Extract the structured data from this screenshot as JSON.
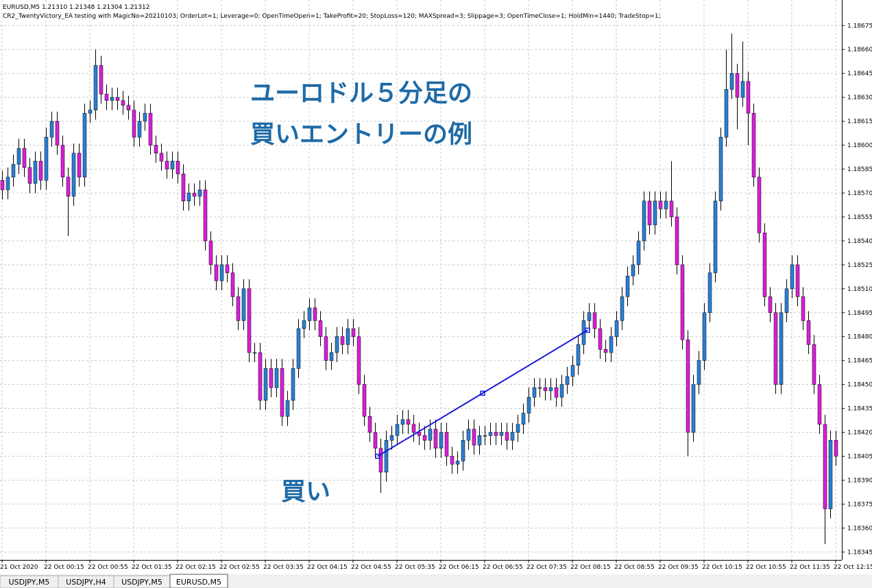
{
  "header": {
    "symbol_line": "EURUSD,M5  1.21310 1.21348 1.21304 1.21312",
    "ea_line": "CR2_TwentyVictory_EA testing with MagicNo=20210103; OrderLot=1; Leverage=0; OpenTimeOpen=1; TakeProfit=20; StopLoss=120; MAXSpread=3; Slippage=3; OpenTimeClose=1; HoldMin=1440; TradeStop=1;"
  },
  "annotations": {
    "title_line1": "ユーロドル５分足の",
    "title_line2": "買いエントリーの例",
    "buy_label": "買い"
  },
  "tabs": [
    "USDJPY,M5",
    "USDJPY,H4",
    "USDJPY,M5",
    "EURUSD,M5"
  ],
  "chart_data": {
    "type": "candlestick",
    "up_color": "#2a7fd4",
    "down_color": "#d81fd8",
    "grid": true,
    "ylim": [
      1.1834,
      1.18691
    ],
    "yticks": [
      1.18675,
      {
        "value": 1.1866,
        "label": "1.18660"
      },
      1.18645,
      {
        "value": 1.1863,
        "label": "1.18630"
      },
      1.18615,
      {
        "value": 1.186,
        "label": "1.18600"
      },
      1.18585,
      {
        "value": 1.1857,
        "label": "1.18570"
      },
      1.18555,
      {
        "value": 1.1854,
        "label": "1.18540"
      },
      1.18525,
      {
        "value": 1.1851,
        "label": "1.18510"
      },
      1.18495,
      {
        "value": 1.1848,
        "label": "1.18480"
      },
      1.18465,
      {
        "value": 1.1845,
        "label": "1.18450"
      },
      1.18435,
      {
        "value": 1.1842,
        "label": "1.18420"
      },
      1.18405,
      {
        "value": 1.1839,
        "label": "1.18390"
      },
      1.18375,
      {
        "value": 1.1836,
        "label": "1.18360"
      },
      1.18345
    ],
    "categories": [
      "21 Oct 2020",
      null,
      null,
      null,
      null,
      null,
      null,
      null,
      "22 Oct 00:15",
      null,
      null,
      null,
      null,
      null,
      null,
      null,
      "22 Oct 00:55",
      null,
      null,
      null,
      null,
      null,
      null,
      null,
      "22 Oct 01:35",
      null,
      null,
      null,
      null,
      null,
      null,
      null,
      "22 Oct 02:15",
      null,
      null,
      null,
      null,
      null,
      null,
      null,
      "22 Oct 02:55",
      null,
      null,
      null,
      null,
      null,
      null,
      null,
      "22 Oct 03:35",
      null,
      null,
      null,
      null,
      null,
      null,
      null,
      "22 Oct 04:15",
      null,
      null,
      null,
      null,
      null,
      null,
      null,
      "22 Oct 04:55",
      null,
      null,
      null,
      null,
      null,
      null,
      null,
      "22 Oct 05:35",
      null,
      null,
      null,
      null,
      null,
      null,
      null,
      "22 Oct 06:15",
      null,
      null,
      null,
      null,
      null,
      null,
      null,
      "22 Oct 06:55",
      null,
      null,
      null,
      null,
      null,
      null,
      null,
      "22 Oct 07:35",
      null,
      null,
      null,
      null,
      null,
      null,
      null,
      "22 Oct 08:15",
      null,
      null,
      null,
      null,
      null,
      null,
      null,
      "22 Oct 08:55",
      null,
      null,
      null,
      null,
      null,
      null,
      null,
      "22 Oct 09:35",
      null,
      null,
      null,
      null,
      null,
      null,
      null,
      "22 Oct 10:15",
      null,
      null,
      null,
      null,
      null,
      null,
      null,
      "22 Oct 10:55",
      null,
      null,
      null,
      null,
      null,
      null,
      null,
      "22 Oct 11:35",
      null,
      null,
      null,
      null,
      null,
      null,
      null,
      "22 Oct 12:15"
    ],
    "open": [
      1.18578,
      1.18572,
      1.1858,
      1.18588,
      1.18598,
      1.18586,
      1.18576,
      1.1859,
      1.18578,
      1.18605,
      1.18615,
      1.186,
      1.1858,
      1.18568,
      1.18595,
      1.1858,
      1.1862,
      1.18622,
      1.1865,
      1.18632,
      1.18628,
      1.1863,
      1.18628,
      1.18625,
      1.18622,
      1.18605,
      1.18615,
      1.1862,
      1.186,
      1.18595,
      1.1859,
      1.18585,
      1.1859,
      1.18582,
      1.18565,
      1.1857,
      1.18568,
      1.18572,
      1.1854,
      1.18525,
      1.18515,
      1.18525,
      1.1852,
      1.18505,
      1.1849,
      1.1851,
      1.1847,
      1.1847,
      1.1844,
      1.1846,
      1.18448,
      1.1846,
      1.1843,
      1.1844,
      1.1846,
      1.18485,
      1.1849,
      1.18498,
      1.1849,
      1.1848,
      1.18465,
      1.1847,
      1.1848,
      1.18475,
      1.18485,
      1.1848,
      1.1845,
      1.1843,
      1.1842,
      1.1841,
      1.18395,
      1.18415,
      1.18418,
      1.18425,
      1.18428,
      1.18425,
      1.1842,
      1.18418,
      1.18415,
      1.18422,
      1.1841,
      1.1842,
      1.18405,
      1.184,
      1.18402,
      1.18415,
      1.18422,
      1.18412,
      1.18418,
      1.18418,
      1.1842,
      1.18418,
      1.1842,
      1.18415,
      1.1842,
      1.18425,
      1.18432,
      1.18442,
      1.18448,
      1.18448,
      1.18446,
      1.18448,
      1.18442,
      1.1845,
      1.18455,
      1.18462,
      1.18475,
      1.1849,
      1.18495,
      1.18485,
      1.18472,
      1.1847,
      1.1848,
      1.1849,
      1.18505,
      1.18518,
      1.18525,
      1.1854,
      1.18565,
      1.1855,
      1.18565,
      1.1856,
      1.18565,
      1.18555,
      1.18525,
      1.18478,
      1.1842,
      1.1845,
      1.18465,
      1.18495,
      1.1852,
      1.18565,
      1.18605,
      1.18635,
      1.18645,
      1.1863,
      1.1864,
      1.1862,
      1.1858,
      1.18545,
      1.18505,
      1.18495,
      1.1845,
      1.18495,
      1.1851,
      1.18525,
      1.18505,
      1.1849,
      1.18475,
      1.1845,
      1.18425,
      1.18372,
      1.18415
    ],
    "high": [
      1.18584,
      1.18586,
      1.18594,
      1.18604,
      1.18604,
      1.18592,
      1.18596,
      1.18596,
      1.18611,
      1.18621,
      1.18621,
      1.18606,
      1.18586,
      1.18601,
      1.18601,
      1.18626,
      1.18628,
      1.1866,
      1.18656,
      1.18638,
      1.18636,
      1.18636,
      1.18634,
      1.18631,
      1.18628,
      1.18621,
      1.18626,
      1.18626,
      1.18606,
      1.18601,
      1.18596,
      1.18596,
      1.18596,
      1.18588,
      1.18576,
      1.18576,
      1.18578,
      1.18578,
      1.18546,
      1.18531,
      1.18531,
      1.18531,
      1.18526,
      1.18511,
      1.18516,
      1.18516,
      1.18476,
      1.18476,
      1.18466,
      1.18466,
      1.18466,
      1.18466,
      1.18446,
      1.18466,
      1.18491,
      1.18496,
      1.18504,
      1.18504,
      1.18496,
      1.18486,
      1.18476,
      1.18486,
      1.18486,
      1.18491,
      1.18491,
      1.18486,
      1.18456,
      1.18436,
      1.18426,
      1.18416,
      1.18421,
      1.18424,
      1.18431,
      1.18434,
      1.18434,
      1.18431,
      1.18426,
      1.18424,
      1.18428,
      1.18428,
      1.18426,
      1.18426,
      1.18411,
      1.18408,
      1.18421,
      1.18428,
      1.18428,
      1.18424,
      1.18424,
      1.18426,
      1.18426,
      1.18426,
      1.18426,
      1.18426,
      1.18431,
      1.18438,
      1.18448,
      1.18454,
      1.18454,
      1.18454,
      1.18454,
      1.18454,
      1.18456,
      1.18461,
      1.18468,
      1.18481,
      1.18496,
      1.18501,
      1.18501,
      1.18491,
      1.18478,
      1.18486,
      1.18496,
      1.18511,
      1.18524,
      1.18531,
      1.18546,
      1.18571,
      1.18571,
      1.18571,
      1.18571,
      1.18571,
      1.1859,
      1.18561,
      1.18531,
      1.18484,
      1.18456,
      1.18471,
      1.18501,
      1.18526,
      1.18571,
      1.18611,
      1.1866,
      1.1867,
      1.18651,
      1.18665,
      1.18646,
      1.18626,
      1.18586,
      1.18551,
      1.18511,
      1.18501,
      1.18501,
      1.18516,
      1.18531,
      1.18531,
      1.18511,
      1.18496,
      1.18481,
      1.18456,
      1.18431,
      1.18421,
      1.18421
    ],
    "low": [
      1.18566,
      1.18566,
      1.18574,
      1.18582,
      1.1858,
      1.1857,
      1.1857,
      1.18572,
      1.18572,
      1.18599,
      1.18594,
      1.18574,
      1.18543,
      1.18562,
      1.18574,
      1.18574,
      1.18614,
      1.18616,
      1.18626,
      1.18622,
      1.18622,
      1.18622,
      1.18619,
      1.18616,
      1.18599,
      1.18599,
      1.18609,
      1.18594,
      1.18589,
      1.18584,
      1.18579,
      1.18579,
      1.18576,
      1.18559,
      1.18559,
      1.18562,
      1.18562,
      1.18534,
      1.18519,
      1.18509,
      1.18509,
      1.18514,
      1.18499,
      1.18484,
      1.18484,
      1.18464,
      1.18464,
      1.18434,
      1.18434,
      1.18442,
      1.18442,
      1.18424,
      1.18424,
      1.18434,
      1.18454,
      1.18479,
      1.18484,
      1.18484,
      1.18474,
      1.18459,
      1.18459,
      1.18464,
      1.18469,
      1.18469,
      1.18474,
      1.18444,
      1.18424,
      1.18414,
      1.18404,
      1.18382,
      1.18389,
      1.18409,
      1.18412,
      1.18419,
      1.18419,
      1.18414,
      1.18412,
      1.18409,
      1.18409,
      1.18404,
      1.18404,
      1.18399,
      1.18394,
      1.18394,
      1.18396,
      1.18409,
      1.18406,
      1.18406,
      1.18412,
      1.18412,
      1.18412,
      1.18412,
      1.18409,
      1.18409,
      1.18414,
      1.18419,
      1.18426,
      1.18436,
      1.18442,
      1.1844,
      1.1844,
      1.18436,
      1.18436,
      1.18444,
      1.18449,
      1.18456,
      1.18469,
      1.18484,
      1.18479,
      1.18466,
      1.18464,
      1.18464,
      1.18474,
      1.18484,
      1.18499,
      1.18512,
      1.18519,
      1.18534,
      1.18544,
      1.18544,
      1.18554,
      1.18554,
      1.18549,
      1.18519,
      1.18472,
      1.18405,
      1.18414,
      1.18444,
      1.18459,
      1.18489,
      1.18514,
      1.18559,
      1.18599,
      1.18629,
      1.1861,
      1.18624,
      1.186,
      1.18574,
      1.18539,
      1.18499,
      1.18489,
      1.18444,
      1.18444,
      1.18489,
      1.18504,
      1.18499,
      1.18484,
      1.18469,
      1.18444,
      1.18419,
      1.1835,
      1.18366,
      1.18399
    ],
    "close": [
      1.18572,
      1.1858,
      1.18588,
      1.18598,
      1.18586,
      1.18576,
      1.1859,
      1.18578,
      1.18605,
      1.18615,
      1.186,
      1.1858,
      1.18568,
      1.18595,
      1.1858,
      1.1862,
      1.18622,
      1.1865,
      1.18632,
      1.18628,
      1.1863,
      1.18628,
      1.18625,
      1.18622,
      1.18605,
      1.18615,
      1.1862,
      1.186,
      1.18595,
      1.1859,
      1.18585,
      1.1859,
      1.18582,
      1.18565,
      1.1857,
      1.18568,
      1.18572,
      1.1854,
      1.18525,
      1.18515,
      1.18525,
      1.1852,
      1.18505,
      1.1849,
      1.1851,
      1.1847,
      1.1847,
      1.1844,
      1.1846,
      1.18448,
      1.1846,
      1.1843,
      1.1844,
      1.1846,
      1.18485,
      1.1849,
      1.18498,
      1.1849,
      1.1848,
      1.18465,
      1.1847,
      1.1848,
      1.18475,
      1.18485,
      1.1848,
      1.1845,
      1.1843,
      1.1842,
      1.1841,
      1.18395,
      1.18415,
      1.18418,
      1.18425,
      1.18428,
      1.18425,
      1.1842,
      1.18418,
      1.18415,
      1.18422,
      1.1841,
      1.1842,
      1.18405,
      1.184,
      1.18402,
      1.18415,
      1.18422,
      1.18412,
      1.18418,
      1.18418,
      1.1842,
      1.18418,
      1.1842,
      1.18415,
      1.1842,
      1.18425,
      1.18432,
      1.18442,
      1.18448,
      1.18448,
      1.18446,
      1.18448,
      1.18442,
      1.1845,
      1.18455,
      1.18462,
      1.18475,
      1.1849,
      1.18495,
      1.18485,
      1.18472,
      1.1847,
      1.1848,
      1.1849,
      1.18505,
      1.18518,
      1.18525,
      1.1854,
      1.18565,
      1.1855,
      1.18565,
      1.1856,
      1.18565,
      1.18555,
      1.18525,
      1.18478,
      1.1842,
      1.1845,
      1.18465,
      1.18495,
      1.1852,
      1.18565,
      1.18605,
      1.18635,
      1.18645,
      1.1863,
      1.1864,
      1.1862,
      1.1858,
      1.18545,
      1.18505,
      1.18495,
      1.1845,
      1.18495,
      1.1851,
      1.18525,
      1.18505,
      1.1849,
      1.18475,
      1.1845,
      1.18425,
      1.18372,
      1.18415,
      1.18405
    ],
    "trade": {
      "color": "#1a1ad8",
      "start_index": 68.5,
      "start_price": 1.18405,
      "end_index": 106.75,
      "end_price": 1.18484
    }
  }
}
